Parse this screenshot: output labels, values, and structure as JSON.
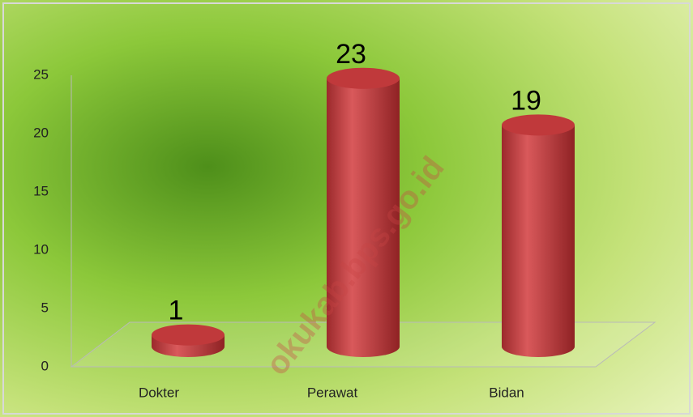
{
  "chart_data": {
    "type": "bar",
    "categories": [
      "Dokter",
      "Perawat",
      "Bidan"
    ],
    "values": [
      1,
      23,
      19
    ],
    "color": "#c0393b",
    "ylim": [
      0,
      25
    ],
    "yticks": [
      0,
      5,
      10,
      15,
      20,
      25
    ],
    "watermark": "okukab.bps.go.id"
  }
}
